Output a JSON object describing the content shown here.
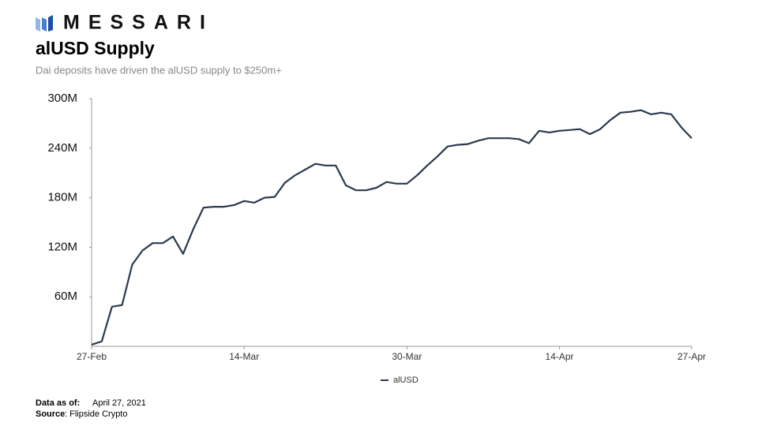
{
  "logo": "MESSARI",
  "footer": {
    "data_as_of_label": "Data as of:",
    "data_as_of": "April 27, 2021",
    "source_label": "Source",
    "source": "Flipside Crypto"
  },
  "chart_data": {
    "type": "line",
    "title": "alUSD Supply",
    "subtitle": "Dai deposits have driven the alUSD supply to $250m+",
    "x": [
      "27-Feb",
      "28-Feb",
      "1-Mar",
      "2-Mar",
      "3-Mar",
      "4-Mar",
      "5-Mar",
      "6-Mar",
      "7-Mar",
      "8-Mar",
      "9-Mar",
      "10-Mar",
      "11-Mar",
      "12-Mar",
      "13-Mar",
      "14-Mar",
      "15-Mar",
      "16-Mar",
      "17-Mar",
      "18-Mar",
      "19-Mar",
      "20-Mar",
      "21-Mar",
      "22-Mar",
      "23-Mar",
      "24-Mar",
      "25-Mar",
      "26-Mar",
      "27-Mar",
      "28-Mar",
      "29-Mar",
      "30-Mar",
      "31-Mar",
      "1-Apr",
      "2-Apr",
      "3-Apr",
      "4-Apr",
      "5-Apr",
      "6-Apr",
      "7-Apr",
      "8-Apr",
      "9-Apr",
      "10-Apr",
      "11-Apr",
      "12-Apr",
      "13-Apr",
      "14-Apr",
      "15-Apr",
      "16-Apr",
      "17-Apr",
      "18-Apr",
      "19-Apr",
      "20-Apr",
      "21-Apr",
      "22-Apr",
      "23-Apr",
      "24-Apr",
      "25-Apr",
      "26-Apr",
      "27-Apr"
    ],
    "series": [
      {
        "name": "alUSD",
        "color": "#2b3a4e",
        "values": [
          2000000,
          6000000,
          48000000,
          50000000,
          99000000,
          116000000,
          125000000,
          125000000,
          133000000,
          112000000,
          142000000,
          168000000,
          169000000,
          169000000,
          171000000,
          176000000,
          174000000,
          180000000,
          181000000,
          198000000,
          207000000,
          214000000,
          221000000,
          219000000,
          219000000,
          195000000,
          189000000,
          189000000,
          192000000,
          199000000,
          197000000,
          197000000,
          207000000,
          219000000,
          230000000,
          242000000,
          244000000,
          245000000,
          249000000,
          252000000,
          252000000,
          252000000,
          251000000,
          246000000,
          261000000,
          259000000,
          261000000,
          262000000,
          263000000,
          257000000,
          263000000,
          274000000,
          283000000,
          284000000,
          286000000,
          281000000,
          283000000,
          281000000,
          265000000,
          252000000
        ]
      }
    ],
    "xticks": [
      "27-Feb",
      "14-Mar",
      "30-Mar",
      "14-Apr",
      "27-Apr"
    ],
    "ylim": [
      0,
      300000000
    ],
    "yticks": [
      {
        "value": 60000000,
        "label": "60M"
      },
      {
        "value": 120000000,
        "label": "120M"
      },
      {
        "value": 180000000,
        "label": "180M"
      },
      {
        "value": 240000000,
        "label": "240M"
      },
      {
        "value": 300000000,
        "label": "300M"
      }
    ],
    "grid": false,
    "legend": "bottom"
  }
}
